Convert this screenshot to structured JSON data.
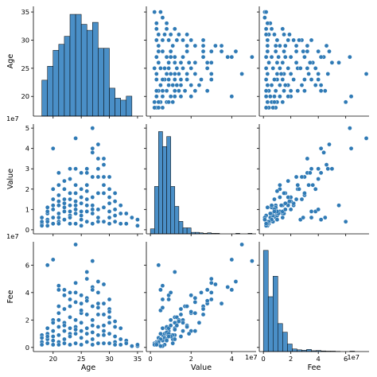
{
  "chart_data": {
    "type": "pairplot",
    "variables": [
      "Age",
      "Value",
      "Fee"
    ],
    "offset_text": "1e7",
    "colors": {
      "point": "#2f7ab5",
      "bar": "#4a8fc7",
      "bar_edge": "#000000",
      "axis": "#000000"
    },
    "grid": false,
    "ranges": {
      "Age": [
        16.5,
        36
      ],
      "Value": [
        -0.2,
        5.2
      ],
      "Fee": [
        -0.3,
        7.7
      ]
    },
    "ticks": {
      "Age": {
        "values": [
          20,
          25,
          30,
          35
        ],
        "labels": [
          "20",
          "25",
          "30",
          "35"
        ]
      },
      "Value": {
        "values": [
          0,
          1,
          2,
          3,
          4,
          5
        ],
        "labels": [
          "0",
          "1",
          "2",
          "3",
          "4",
          "5"
        ]
      },
      "Value_x": {
        "values": [
          0,
          2,
          4
        ],
        "labels": [
          "0",
          "2",
          "4"
        ]
      },
      "Fee": {
        "values": [
          0,
          2,
          4,
          6
        ],
        "labels": [
          "0",
          "2",
          "4",
          "6"
        ]
      }
    },
    "histograms": {
      "Age": {
        "edges": [
          18,
          19,
          20,
          21,
          22,
          23,
          24,
          25,
          26,
          27,
          28,
          29,
          30,
          31,
          32,
          33,
          34,
          35
        ],
        "counts": [
          18,
          25,
          33,
          36,
          40,
          51,
          51,
          46,
          43,
          47,
          34,
          34,
          14,
          9,
          8,
          10,
          0
        ],
        "max": 55
      },
      "Value": {
        "edges": [
          0,
          0.2,
          0.4,
          0.6,
          0.8,
          1.0,
          1.2,
          1.4,
          1.6,
          1.8,
          2.0,
          2.2,
          2.4,
          2.6,
          2.8,
          3.0,
          3.2,
          3.4,
          3.6,
          3.8,
          4.0,
          4.2,
          4.4,
          4.6,
          4.8,
          5.0
        ],
        "counts": [
          10,
          95,
          205,
          175,
          195,
          95,
          55,
          25,
          12,
          12,
          3,
          3,
          2,
          1,
          2,
          1,
          1,
          0,
          0,
          0,
          0,
          1,
          0,
          0,
          1
        ],
        "max": 220
      },
      "Fee": {
        "edges": [
          0,
          0.35,
          0.7,
          1.05,
          1.4,
          1.75,
          2.1,
          2.45,
          2.8,
          3.15,
          3.5,
          3.85,
          4.2,
          4.55,
          4.9,
          5.25,
          5.6,
          5.95,
          6.3,
          6.65,
          7.0,
          7.35
        ],
        "counts": [
          470,
          255,
          350,
          130,
          90,
          35,
          12,
          8,
          6,
          10,
          4,
          5,
          3,
          2,
          2,
          1,
          0,
          0,
          2,
          0,
          0
        ],
        "max": 510
      }
    },
    "points": [
      {
        "Age": 18,
        "Value": 0.3,
        "Fee": 0.4
      },
      {
        "Age": 18,
        "Value": 0.6,
        "Fee": 0.9
      },
      {
        "Age": 18,
        "Value": 0.2,
        "Fee": 0.2
      },
      {
        "Age": 18,
        "Value": 0.4,
        "Fee": 0.7
      },
      {
        "Age": 19,
        "Value": 0.5,
        "Fee": 1.0
      },
      {
        "Age": 19,
        "Value": 0.8,
        "Fee": 1.4
      },
      {
        "Age": 19,
        "Value": 0.2,
        "Fee": 0.3
      },
      {
        "Age": 19,
        "Value": 1.1,
        "Fee": 0.6
      },
      {
        "Age": 19,
        "Value": 0.4,
        "Fee": 6.0
      },
      {
        "Age": 20,
        "Value": 4.0,
        "Fee": 6.4
      },
      {
        "Age": 20,
        "Value": 2.0,
        "Fee": 1.2
      },
      {
        "Age": 20,
        "Value": 0.6,
        "Fee": 0.5
      },
      {
        "Age": 20,
        "Value": 1.0,
        "Fee": 2.0
      },
      {
        "Age": 20,
        "Value": 0.3,
        "Fee": 0.2
      },
      {
        "Age": 20,
        "Value": 1.5,
        "Fee": 0.8
      },
      {
        "Age": 21,
        "Value": 2.8,
        "Fee": 4.2
      },
      {
        "Age": 21,
        "Value": 1.7,
        "Fee": 3.0
      },
      {
        "Age": 21,
        "Value": 0.8,
        "Fee": 1.5
      },
      {
        "Age": 21,
        "Value": 0.4,
        "Fee": 0.4
      },
      {
        "Age": 21,
        "Value": 2.2,
        "Fee": 2.5
      },
      {
        "Age": 21,
        "Value": 1.2,
        "Fee": 0.9
      },
      {
        "Age": 21,
        "Value": 0.6,
        "Fee": 4.5
      },
      {
        "Age": 22,
        "Value": 2.0,
        "Fee": 3.8
      },
      {
        "Age": 22,
        "Value": 1.5,
        "Fee": 2.8
      },
      {
        "Age": 22,
        "Value": 0.9,
        "Fee": 1.2
      },
      {
        "Age": 22,
        "Value": 0.5,
        "Fee": 0.6
      },
      {
        "Age": 22,
        "Value": 2.4,
        "Fee": 1.8
      },
      {
        "Age": 22,
        "Value": 1.1,
        "Fee": 0.3
      },
      {
        "Age": 23,
        "Value": 2.5,
        "Fee": 4.0
      },
      {
        "Age": 23,
        "Value": 1.8,
        "Fee": 3.0
      },
      {
        "Age": 23,
        "Value": 1.2,
        "Fee": 2.2
      },
      {
        "Age": 23,
        "Value": 0.7,
        "Fee": 1.0
      },
      {
        "Age": 23,
        "Value": 0.3,
        "Fee": 0.2
      },
      {
        "Age": 23,
        "Value": 1.5,
        "Fee": 0.8
      },
      {
        "Age": 23,
        "Value": 0.9,
        "Fee": 3.5
      },
      {
        "Age": 24,
        "Value": 4.5,
        "Fee": 7.5
      },
      {
        "Age": 24,
        "Value": 3.0,
        "Fee": 4.7
      },
      {
        "Age": 24,
        "Value": 2.2,
        "Fee": 3.3
      },
      {
        "Age": 24,
        "Value": 1.4,
        "Fee": 2.0
      },
      {
        "Age": 24,
        "Value": 0.8,
        "Fee": 1.0
      },
      {
        "Age": 24,
        "Value": 0.3,
        "Fee": 0.3
      },
      {
        "Age": 24,
        "Value": 1.8,
        "Fee": 1.5
      },
      {
        "Age": 25,
        "Value": 2.8,
        "Fee": 3.2
      },
      {
        "Age": 25,
        "Value": 2.0,
        "Fee": 2.5
      },
      {
        "Age": 25,
        "Value": 1.3,
        "Fee": 1.8
      },
      {
        "Age": 25,
        "Value": 0.7,
        "Fee": 0.7
      },
      {
        "Age": 25,
        "Value": 0.2,
        "Fee": 0.2
      },
      {
        "Age": 25,
        "Value": 1.6,
        "Fee": 1.2
      },
      {
        "Age": 25,
        "Value": 0.9,
        "Fee": 3.8
      },
      {
        "Age": 26,
        "Value": 3.0,
        "Fee": 5.0
      },
      {
        "Age": 26,
        "Value": 2.2,
        "Fee": 3.6
      },
      {
        "Age": 26,
        "Value": 1.5,
        "Fee": 2.4
      },
      {
        "Age": 26,
        "Value": 0.9,
        "Fee": 1.4
      },
      {
        "Age": 26,
        "Value": 0.4,
        "Fee": 0.4
      },
      {
        "Age": 26,
        "Value": 1.9,
        "Fee": 1.0
      },
      {
        "Age": 27,
        "Value": 5.0,
        "Fee": 6.3
      },
      {
        "Age": 27,
        "Value": 3.8,
        "Fee": 4.4
      },
      {
        "Age": 27,
        "Value": 2.6,
        "Fee": 3.0
      },
      {
        "Age": 27,
        "Value": 1.6,
        "Fee": 2.0
      },
      {
        "Age": 27,
        "Value": 0.8,
        "Fee": 1.1
      },
      {
        "Age": 27,
        "Value": 0.3,
        "Fee": 0.2
      },
      {
        "Age": 27,
        "Value": 1.2,
        "Fee": 0.6
      },
      {
        "Age": 28,
        "Value": 4.2,
        "Fee": 4.8
      },
      {
        "Age": 28,
        "Value": 3.5,
        "Fee": 3.2
      },
      {
        "Age": 28,
        "Value": 2.6,
        "Fee": 2.4
      },
      {
        "Age": 28,
        "Value": 1.8,
        "Fee": 1.5
      },
      {
        "Age": 28,
        "Value": 1.0,
        "Fee": 0.9
      },
      {
        "Age": 28,
        "Value": 0.4,
        "Fee": 0.3
      },
      {
        "Age": 28,
        "Value": 3.0,
        "Fee": 4.0
      },
      {
        "Age": 29,
        "Value": 3.5,
        "Fee": 3.2
      },
      {
        "Age": 29,
        "Value": 2.6,
        "Fee": 2.4
      },
      {
        "Age": 29,
        "Value": 1.8,
        "Fee": 1.6
      },
      {
        "Age": 29,
        "Value": 1.1,
        "Fee": 0.9
      },
      {
        "Age": 29,
        "Value": 0.4,
        "Fee": 0.3
      },
      {
        "Age": 29,
        "Value": 2.2,
        "Fee": 1.2
      },
      {
        "Age": 30,
        "Value": 2.6,
        "Fee": 2.8
      },
      {
        "Age": 30,
        "Value": 1.6,
        "Fee": 1.8
      },
      {
        "Age": 30,
        "Value": 0.9,
        "Fee": 1.0
      },
      {
        "Age": 30,
        "Value": 0.3,
        "Fee": 0.3
      },
      {
        "Age": 30,
        "Value": 1.3,
        "Fee": 2.2
      },
      {
        "Age": 31,
        "Value": 1.8,
        "Fee": 1.5
      },
      {
        "Age": 31,
        "Value": 1.0,
        "Fee": 0.8
      },
      {
        "Age": 31,
        "Value": 0.4,
        "Fee": 0.4
      },
      {
        "Age": 31,
        "Value": 0.7,
        "Fee": 0.2
      },
      {
        "Age": 32,
        "Value": 1.2,
        "Fee": 1.4
      },
      {
        "Age": 32,
        "Value": 0.8,
        "Fee": 0.6
      },
      {
        "Age": 32,
        "Value": 0.3,
        "Fee": 0.2
      },
      {
        "Age": 33,
        "Value": 0.8,
        "Fee": 0.5
      },
      {
        "Age": 33,
        "Value": 0.3,
        "Fee": 0.3
      },
      {
        "Age": 34,
        "Value": 0.6,
        "Fee": 0.1
      },
      {
        "Age": 35,
        "Value": 0.5,
        "Fee": 0.1
      },
      {
        "Age": 35,
        "Value": 0.2,
        "Fee": 0.2
      },
      {
        "Age": 26,
        "Value": 1.2,
        "Fee": 5.5
      },
      {
        "Age": 24,
        "Value": 1.0,
        "Fee": 4.0
      },
      {
        "Age": 22,
        "Value": 0.5,
        "Fee": 4.2
      },
      {
        "Age": 30,
        "Value": 0.6,
        "Fee": 3.5
      },
      {
        "Age": 20,
        "Value": 1.2,
        "Fee": 1.8
      },
      {
        "Age": 23,
        "Value": 3.0,
        "Fee": 3.5
      },
      {
        "Age": 29,
        "Value": 3.2,
        "Fee": 4.6
      },
      {
        "Age": 27,
        "Value": 4.0,
        "Fee": 4.2
      },
      {
        "Age": 21,
        "Value": 1.4,
        "Fee": 2.0
      },
      {
        "Age": 25,
        "Value": 0.5,
        "Fee": 2.7
      },
      {
        "Age": 28,
        "Value": 0.6,
        "Fee": 2.9
      },
      {
        "Age": 26,
        "Value": 2.8,
        "Fee": 3.4
      },
      {
        "Age": 22,
        "Value": 1.3,
        "Fee": 1.6
      },
      {
        "Age": 24,
        "Value": 1.2,
        "Fee": 1.3
      },
      {
        "Age": 27,
        "Value": 1.0,
        "Fee": 1.6
      },
      {
        "Age": 23,
        "Value": 0.6,
        "Fee": 1.4
      },
      {
        "Age": 31,
        "Value": 1.4,
        "Fee": 1.9
      },
      {
        "Age": 19,
        "Value": 0.9,
        "Fee": 0.8
      },
      {
        "Age": 30,
        "Value": 2.0,
        "Fee": 2.6
      },
      {
        "Age": 21,
        "Value": 0.3,
        "Fee": 0.2
      }
    ]
  }
}
